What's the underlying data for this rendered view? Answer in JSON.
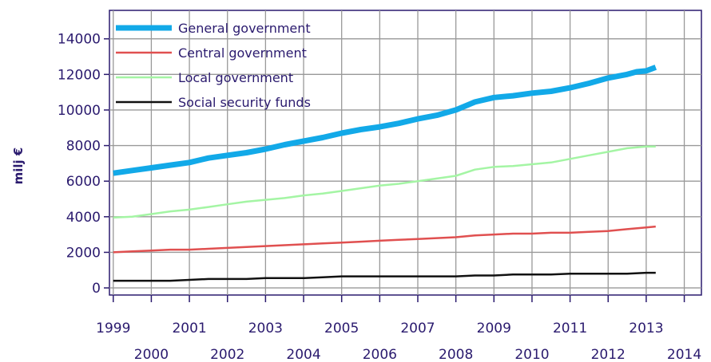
{
  "chart_data": {
    "type": "line",
    "title": "",
    "xlabel": "",
    "ylabel": "milj €",
    "xlim": [
      1998.9,
      2014.45
    ],
    "ylim": [
      -400,
      15600
    ],
    "y_ticks": [
      0,
      2000,
      4000,
      6000,
      8000,
      10000,
      12000,
      14000
    ],
    "y_tick_labels": [
      "0",
      "2000",
      "4000",
      "6000",
      "8000",
      "10000",
      "12000",
      "14000"
    ],
    "x_ticks": [
      1999,
      2000,
      2001,
      2002,
      2003,
      2004,
      2005,
      2006,
      2007,
      2008,
      2009,
      2010,
      2011,
      2012,
      2013,
      2014
    ],
    "x_tick_labels": [
      "1999",
      "2000",
      "2001",
      "2002",
      "2003",
      "2004",
      "2005",
      "2006",
      "2007",
      "2008",
      "2009",
      "2010",
      "2011",
      "2012",
      "2013",
      "2014"
    ],
    "grid": true,
    "legend_position": "top-left",
    "series": [
      {
        "name": "General government",
        "color": "#12a9e8",
        "width": 7,
        "points": [
          [
            1999.0,
            6450
          ],
          [
            1999.5,
            6600
          ],
          [
            2000.0,
            6750
          ],
          [
            2000.5,
            6900
          ],
          [
            2001.0,
            7050
          ],
          [
            2001.5,
            7300
          ],
          [
            2002.0,
            7450
          ],
          [
            2002.5,
            7600
          ],
          [
            2003.0,
            7800
          ],
          [
            2003.5,
            8050
          ],
          [
            2004.0,
            8250
          ],
          [
            2004.5,
            8450
          ],
          [
            2005.0,
            8700
          ],
          [
            2005.5,
            8900
          ],
          [
            2006.0,
            9050
          ],
          [
            2006.5,
            9250
          ],
          [
            2007.0,
            9500
          ],
          [
            2007.5,
            9700
          ],
          [
            2008.0,
            10000
          ],
          [
            2008.5,
            10450
          ],
          [
            2009.0,
            10700
          ],
          [
            2009.5,
            10800
          ],
          [
            2010.0,
            10950
          ],
          [
            2010.5,
            11050
          ],
          [
            2011.0,
            11250
          ],
          [
            2011.5,
            11500
          ],
          [
            2012.0,
            11800
          ],
          [
            2012.5,
            12000
          ],
          [
            2012.75,
            12150
          ],
          [
            2013.0,
            12200
          ],
          [
            2013.25,
            12400
          ]
        ]
      },
      {
        "name": "Central government",
        "color": "#e05050",
        "width": 2.5,
        "points": [
          [
            1999.0,
            2000
          ],
          [
            1999.5,
            2050
          ],
          [
            2000.0,
            2100
          ],
          [
            2000.5,
            2150
          ],
          [
            2001.0,
            2150
          ],
          [
            2001.5,
            2200
          ],
          [
            2002.0,
            2250
          ],
          [
            2002.5,
            2300
          ],
          [
            2003.0,
            2350
          ],
          [
            2003.5,
            2400
          ],
          [
            2004.0,
            2450
          ],
          [
            2004.5,
            2500
          ],
          [
            2005.0,
            2550
          ],
          [
            2005.5,
            2600
          ],
          [
            2006.0,
            2650
          ],
          [
            2006.5,
            2700
          ],
          [
            2007.0,
            2750
          ],
          [
            2007.5,
            2800
          ],
          [
            2008.0,
            2850
          ],
          [
            2008.5,
            2950
          ],
          [
            2009.0,
            3000
          ],
          [
            2009.5,
            3050
          ],
          [
            2010.0,
            3050
          ],
          [
            2010.5,
            3100
          ],
          [
            2011.0,
            3100
          ],
          [
            2011.5,
            3150
          ],
          [
            2012.0,
            3200
          ],
          [
            2012.5,
            3300
          ],
          [
            2013.0,
            3400
          ],
          [
            2013.25,
            3450
          ]
        ]
      },
      {
        "name": "Local government",
        "color": "#a4f5a4",
        "width": 2.5,
        "points": [
          [
            1999.0,
            3950
          ],
          [
            1999.5,
            4000
          ],
          [
            2000.0,
            4150
          ],
          [
            2000.5,
            4300
          ],
          [
            2001.0,
            4400
          ],
          [
            2001.5,
            4550
          ],
          [
            2002.0,
            4700
          ],
          [
            2002.5,
            4850
          ],
          [
            2003.0,
            4950
          ],
          [
            2003.5,
            5050
          ],
          [
            2004.0,
            5200
          ],
          [
            2004.5,
            5300
          ],
          [
            2005.0,
            5450
          ],
          [
            2005.5,
            5600
          ],
          [
            2006.0,
            5750
          ],
          [
            2006.5,
            5850
          ],
          [
            2007.0,
            6000
          ],
          [
            2007.5,
            6150
          ],
          [
            2008.0,
            6300
          ],
          [
            2008.5,
            6650
          ],
          [
            2009.0,
            6800
          ],
          [
            2009.5,
            6850
          ],
          [
            2010.0,
            6950
          ],
          [
            2010.5,
            7050
          ],
          [
            2011.0,
            7250
          ],
          [
            2011.5,
            7450
          ],
          [
            2012.0,
            7650
          ],
          [
            2012.5,
            7850
          ],
          [
            2013.0,
            7950
          ],
          [
            2013.25,
            7950
          ]
        ]
      },
      {
        "name": "Social security funds",
        "color": "#111111",
        "width": 2.5,
        "points": [
          [
            1999.0,
            400
          ],
          [
            1999.5,
            400
          ],
          [
            2000.0,
            400
          ],
          [
            2000.5,
            400
          ],
          [
            2001.0,
            450
          ],
          [
            2001.5,
            500
          ],
          [
            2002.0,
            500
          ],
          [
            2002.5,
            500
          ],
          [
            2003.0,
            550
          ],
          [
            2003.5,
            550
          ],
          [
            2004.0,
            550
          ],
          [
            2004.5,
            600
          ],
          [
            2005.0,
            650
          ],
          [
            2005.5,
            650
          ],
          [
            2006.0,
            650
          ],
          [
            2006.5,
            650
          ],
          [
            2007.0,
            650
          ],
          [
            2007.5,
            650
          ],
          [
            2008.0,
            650
          ],
          [
            2008.5,
            700
          ],
          [
            2009.0,
            700
          ],
          [
            2009.5,
            750
          ],
          [
            2010.0,
            750
          ],
          [
            2010.5,
            750
          ],
          [
            2011.0,
            800
          ],
          [
            2011.5,
            800
          ],
          [
            2012.0,
            800
          ],
          [
            2012.5,
            800
          ],
          [
            2013.0,
            850
          ],
          [
            2013.25,
            850
          ]
        ]
      }
    ]
  }
}
